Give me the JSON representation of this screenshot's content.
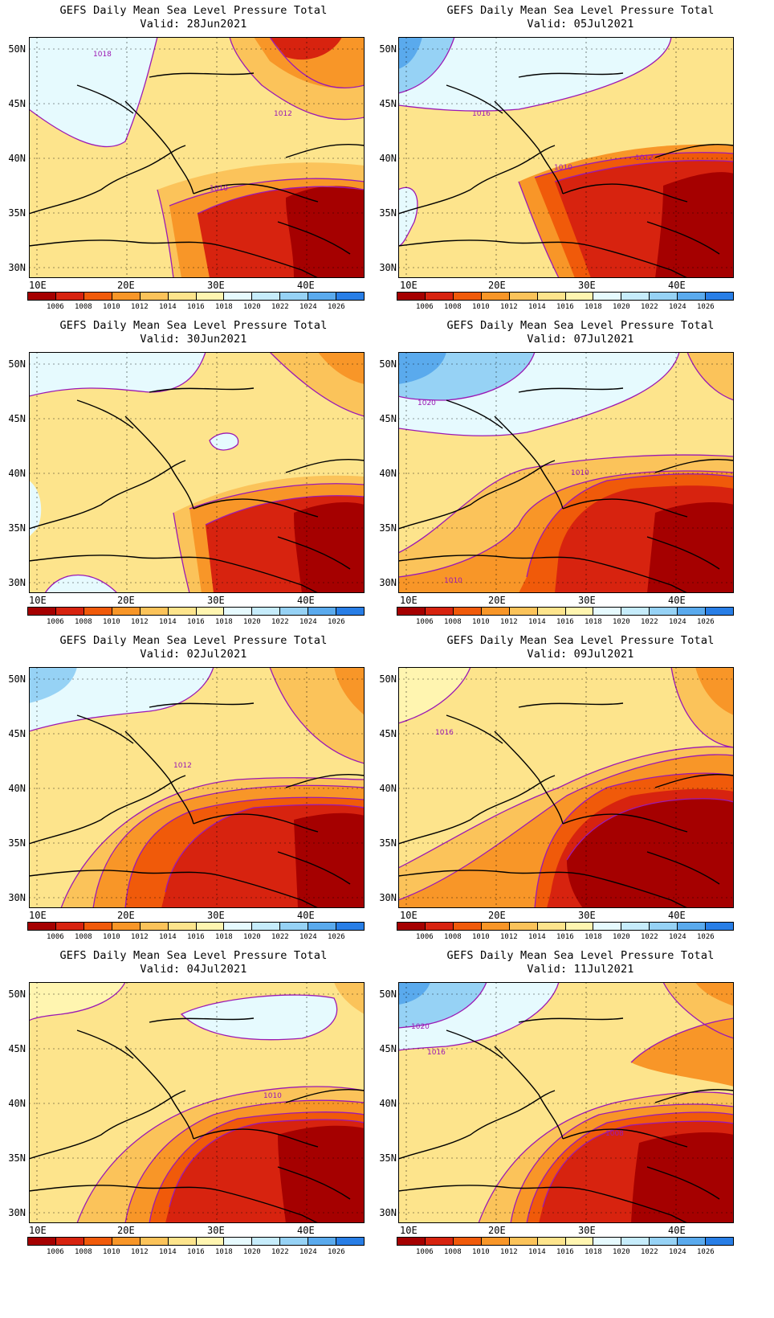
{
  "panels": [
    {
      "title": "GEFS Daily Mean Sea Level Pressure Total",
      "valid": "Valid: 28Jun2021",
      "contours": [
        "1018",
        "1012",
        "1010"
      ]
    },
    {
      "title": "GEFS Daily Mean Sea Level Pressure Total",
      "valid": "Valid: 05Jul2021",
      "contours": [
        "1016",
        "1012",
        "1010"
      ]
    },
    {
      "title": "GEFS Daily Mean Sea Level Pressure Total",
      "valid": "Valid: 30Jun2021",
      "contours": []
    },
    {
      "title": "GEFS Daily Mean Sea Level Pressure Total",
      "valid": "Valid: 07Jul2021",
      "contours": [
        "1020",
        "1010",
        "1010"
      ]
    },
    {
      "title": "GEFS Daily Mean Sea Level Pressure Total",
      "valid": "Valid: 02Jul2021",
      "contours": [
        "1012"
      ]
    },
    {
      "title": "GEFS Daily Mean Sea Level Pressure Total",
      "valid": "Valid: 09Jul2021",
      "contours": [
        "1016"
      ]
    },
    {
      "title": "GEFS Daily Mean Sea Level Pressure Total",
      "valid": "Valid: 04Jul2021",
      "contours": [
        "1010"
      ]
    },
    {
      "title": "GEFS Daily Mean Sea Level Pressure Total",
      "valid": "Valid: 11Jul2021",
      "contours": [
        "1020",
        "1016",
        "1008"
      ]
    }
  ],
  "lat_labels": [
    "50N",
    "45N",
    "40N",
    "35N",
    "30N"
  ],
  "lon_labels": [
    "10E",
    "20E",
    "30E",
    "40E"
  ],
  "colorbar": {
    "labels": [
      "1006",
      "1008",
      "1010",
      "1012",
      "1014",
      "1016",
      "1018",
      "1020",
      "1022",
      "1024",
      "1026"
    ],
    "colors": [
      "#a50000",
      "#d7230f",
      "#f05a0a",
      "#f89628",
      "#fbc35a",
      "#fde48c",
      "#fff5b0",
      "#e6fafe",
      "#c6ecfb",
      "#96d2f5",
      "#5aaaed",
      "#287ee6"
    ]
  }
}
